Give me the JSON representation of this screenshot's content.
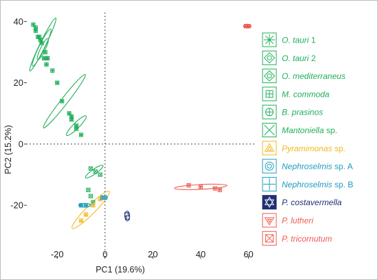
{
  "chart_data": {
    "type": "scatter",
    "title": "",
    "xlabel": "PC1 (19.6%)",
    "ylabel": "PC2 (15.2%)",
    "xlim": [
      -33,
      63
    ],
    "ylim": [
      -37,
      43
    ],
    "x_ticks": [
      -20,
      0,
      20,
      40,
      60
    ],
    "y_ticks": [
      -20,
      0,
      20,
      40
    ],
    "x_tick_labels": [
      "-20",
      "0",
      "20",
      "40",
      "60"
    ],
    "y_tick_labels": [
      "-20",
      "0",
      "20",
      "40"
    ],
    "reference_lines": {
      "x": 0,
      "y": 0,
      "style": "dotted"
    },
    "legend_position": "right",
    "series": [
      {
        "name": "O. tauri 1",
        "italic": "O. tauri",
        "suffix": " 1",
        "color": "#1fae5b",
        "marker": "asterisk",
        "points": [
          [
            -30,
            39
          ],
          [
            -29,
            38
          ],
          [
            -27.5,
            35
          ],
          [
            -26.5,
            33
          ],
          [
            -25,
            30
          ],
          [
            -24,
            28
          ],
          [
            -22,
            24
          ]
        ],
        "ellipse": {
          "cx": -26,
          "cy": 32.5,
          "rx": 10,
          "ry": 1.2,
          "angle": -64
        }
      },
      {
        "name": "O. tauri 2",
        "italic": "O. tauri",
        "suffix": " 2",
        "color": "#1fae5b",
        "marker": "diamond-in-square",
        "points": [
          [
            -29,
            37
          ],
          [
            -27,
            34
          ],
          [
            -25.5,
            28
          ],
          [
            -24.5,
            26
          ]
        ],
        "ellipse": {
          "cx": -26.5,
          "cy": 31.5,
          "rx": 7,
          "ry": 1.2,
          "angle": -64
        }
      },
      {
        "name": "O. mediterraneus",
        "italic": "O. mediterraneus",
        "suffix": "",
        "color": "#1fae5b",
        "marker": "diamond-in-square",
        "points": [
          [
            -28,
            35
          ],
          [
            -24.5,
            28
          ]
        ],
        "ellipse": {
          "cx": -26,
          "cy": 31,
          "rx": 4,
          "ry": 1,
          "angle": -64
        }
      },
      {
        "name": "M. commoda",
        "italic": "M. commoda",
        "suffix": "",
        "color": "#1fae5b",
        "marker": "grid-square",
        "points": [
          [
            -20,
            20
          ],
          [
            -18,
            14
          ],
          [
            -15,
            10
          ],
          [
            -14,
            8
          ],
          [
            -12,
            6
          ]
        ],
        "ellipse": {
          "cx": -17,
          "cy": 14,
          "rx": 12,
          "ry": 1.4,
          "angle": -52
        }
      },
      {
        "name": "B. prasinos",
        "italic": "B. prasinos",
        "suffix": "",
        "color": "#1fae5b",
        "marker": "circle-plus",
        "points": [
          [
            -14,
            9
          ],
          [
            -12,
            5
          ],
          [
            -10,
            3
          ]
        ],
        "ellipse": {
          "cx": -12,
          "cy": 6,
          "rx": 5,
          "ry": 1.2,
          "angle": -45
        }
      },
      {
        "name": "Mantoniella sp.",
        "italic": "Mantoniella",
        "suffix": " sp.",
        "color": "#1fae5b",
        "marker": "x",
        "points": [
          [
            -7,
            -15
          ],
          [
            -6,
            -17
          ],
          [
            -5,
            -19
          ],
          [
            -6,
            -8
          ],
          [
            -4,
            -9
          ],
          [
            -2,
            -10
          ]
        ],
        "ellipse": {
          "cx": -4.5,
          "cy": -9,
          "rx": 4,
          "ry": 1,
          "angle": -35
        }
      },
      {
        "name": "Pyramimonas sp.",
        "italic": "Pyramimonas",
        "suffix": "  sp.",
        "color": "#f2b81d",
        "marker": "triangle-in-square",
        "points": [
          [
            -10,
            -25
          ],
          [
            -8,
            -23
          ],
          [
            -5,
            -20
          ],
          [
            -2,
            -18
          ]
        ],
        "ellipse": {
          "cx": -6,
          "cy": -21.5,
          "rx": 9.5,
          "ry": 1.8,
          "angle": -45
        }
      },
      {
        "name": "Nephroselmis sp. A",
        "italic": "Nephroselmis",
        "suffix": " sp. A",
        "color": "#1b9bbf",
        "marker": "double-circle",
        "points": [
          [
            -10,
            -20
          ],
          [
            -8,
            -20
          ]
        ],
        "ellipse": {
          "cx": -8.5,
          "cy": -20,
          "rx": 2.5,
          "ry": 0.8,
          "angle": 0
        }
      },
      {
        "name": "Nephroselmis sp. B",
        "italic": "Nephroselmis",
        "suffix": " sp. B",
        "color": "#1b9bbf",
        "marker": "plus",
        "points": [
          [
            -1,
            -17.5
          ],
          [
            0,
            -17.5
          ]
        ],
        "ellipse": {
          "cx": -0.5,
          "cy": -17.5,
          "rx": 1.5,
          "ry": 0.7,
          "angle": 0
        }
      },
      {
        "name": "P. costavermella",
        "italic": "P. costavermella",
        "suffix": "",
        "color": "#1f2f75",
        "marker": "star-of-david",
        "points": [
          [
            9,
            -23
          ],
          [
            9.5,
            -24
          ]
        ],
        "ellipse": {
          "cx": 9.3,
          "cy": -23.5,
          "rx": 1.6,
          "ry": 1,
          "angle": 90
        }
      },
      {
        "name": "P. lutheri",
        "italic": "P. lutheri",
        "suffix": "",
        "color": "#ee5a4f",
        "marker": "triangle-down-in-square",
        "points": [
          [
            35,
            -13.5
          ],
          [
            40,
            -14
          ],
          [
            46,
            -14.5
          ],
          [
            48,
            -15
          ]
        ],
        "ellipse": {
          "cx": 40,
          "cy": -14,
          "rx": 11,
          "ry": 1,
          "angle": -3
        }
      },
      {
        "name": "P. tricornutum",
        "italic": "P. tricornutum",
        "suffix": "",
        "color": "#ee5a4f",
        "marker": "x-in-square",
        "points": [
          [
            59,
            38.5
          ],
          [
            60,
            38.5
          ]
        ],
        "ellipse": {
          "cx": 59.5,
          "cy": 38.5,
          "rx": 1.6,
          "ry": 0.8,
          "angle": 0
        }
      }
    ]
  }
}
